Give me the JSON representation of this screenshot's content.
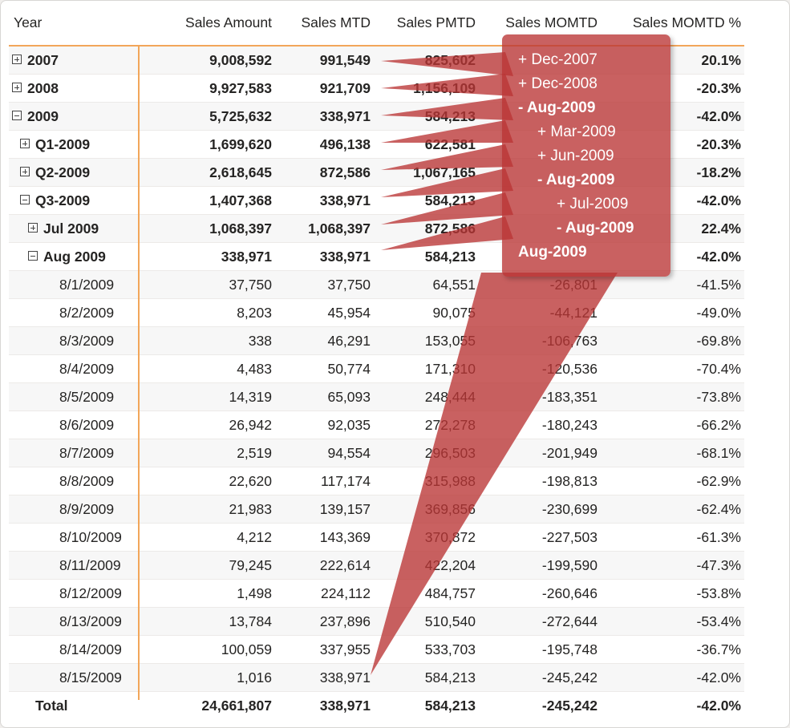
{
  "headers": [
    "Year",
    "Sales Amount",
    "Sales MTD",
    "Sales PMTD",
    "Sales MOMTD",
    "Sales MOMTD %"
  ],
  "rows": [
    {
      "label": "2007",
      "expander": "plus",
      "indent": 0,
      "bold": true,
      "values": [
        "9,008,592",
        "991,549",
        "825,602",
        "",
        "20.1%"
      ]
    },
    {
      "label": "2008",
      "expander": "plus",
      "indent": 0,
      "bold": true,
      "values": [
        "9,927,583",
        "921,709",
        "1,156,109",
        "",
        "-20.3%"
      ]
    },
    {
      "label": "2009",
      "expander": "minus",
      "indent": 0,
      "bold": true,
      "values": [
        "5,725,632",
        "338,971",
        "584,213",
        "",
        "-42.0%"
      ]
    },
    {
      "label": "Q1-2009",
      "expander": "plus",
      "indent": 1,
      "bold": true,
      "values": [
        "1,699,620",
        "496,138",
        "622,581",
        "",
        "-20.3%"
      ]
    },
    {
      "label": "Q2-2009",
      "expander": "plus",
      "indent": 1,
      "bold": true,
      "values": [
        "2,618,645",
        "872,586",
        "1,067,165",
        "",
        "-18.2%"
      ]
    },
    {
      "label": "Q3-2009",
      "expander": "minus",
      "indent": 1,
      "bold": true,
      "values": [
        "1,407,368",
        "338,971",
        "584,213",
        "",
        "-42.0%"
      ]
    },
    {
      "label": "Jul 2009",
      "expander": "plus",
      "indent": 2,
      "bold": true,
      "values": [
        "1,068,397",
        "1,068,397",
        "872,586",
        "",
        "22.4%"
      ]
    },
    {
      "label": "Aug 2009",
      "expander": "minus",
      "indent": 2,
      "bold": true,
      "values": [
        "338,971",
        "338,971",
        "584,213",
        "",
        "-42.0%"
      ]
    },
    {
      "label": "8/1/2009",
      "expander": "",
      "indent": 3,
      "bold": false,
      "values": [
        "37,750",
        "37,750",
        "64,551",
        "-26,801",
        "-41.5%"
      ]
    },
    {
      "label": "8/2/2009",
      "expander": "",
      "indent": 3,
      "bold": false,
      "values": [
        "8,203",
        "45,954",
        "90,075",
        "-44,121",
        "-49.0%"
      ]
    },
    {
      "label": "8/3/2009",
      "expander": "",
      "indent": 3,
      "bold": false,
      "values": [
        "338",
        "46,291",
        "153,055",
        "-106,763",
        "-69.8%"
      ]
    },
    {
      "label": "8/4/2009",
      "expander": "",
      "indent": 3,
      "bold": false,
      "values": [
        "4,483",
        "50,774",
        "171,310",
        "-120,536",
        "-70.4%"
      ]
    },
    {
      "label": "8/5/2009",
      "expander": "",
      "indent": 3,
      "bold": false,
      "values": [
        "14,319",
        "65,093",
        "248,444",
        "-183,351",
        "-73.8%"
      ]
    },
    {
      "label": "8/6/2009",
      "expander": "",
      "indent": 3,
      "bold": false,
      "values": [
        "26,942",
        "92,035",
        "272,278",
        "-180,243",
        "-66.2%"
      ]
    },
    {
      "label": "8/7/2009",
      "expander": "",
      "indent": 3,
      "bold": false,
      "values": [
        "2,519",
        "94,554",
        "296,503",
        "-201,949",
        "-68.1%"
      ]
    },
    {
      "label": "8/8/2009",
      "expander": "",
      "indent": 3,
      "bold": false,
      "values": [
        "22,620",
        "117,174",
        "315,988",
        "-198,813",
        "-62.9%"
      ]
    },
    {
      "label": "8/9/2009",
      "expander": "",
      "indent": 3,
      "bold": false,
      "values": [
        "21,983",
        "139,157",
        "369,856",
        "-230,699",
        "-62.4%"
      ]
    },
    {
      "label": "8/10/2009",
      "expander": "",
      "indent": 3,
      "bold": false,
      "values": [
        "4,212",
        "143,369",
        "370,872",
        "-227,503",
        "-61.3%"
      ]
    },
    {
      "label": "8/11/2009",
      "expander": "",
      "indent": 3,
      "bold": false,
      "values": [
        "79,245",
        "222,614",
        "422,204",
        "-199,590",
        "-47.3%"
      ]
    },
    {
      "label": "8/12/2009",
      "expander": "",
      "indent": 3,
      "bold": false,
      "values": [
        "1,498",
        "224,112",
        "484,757",
        "-260,646",
        "-53.8%"
      ]
    },
    {
      "label": "8/13/2009",
      "expander": "",
      "indent": 3,
      "bold": false,
      "values": [
        "13,784",
        "237,896",
        "510,540",
        "-272,644",
        "-53.4%"
      ]
    },
    {
      "label": "8/14/2009",
      "expander": "",
      "indent": 3,
      "bold": false,
      "values": [
        "100,059",
        "337,955",
        "533,703",
        "-195,748",
        "-36.7%"
      ]
    },
    {
      "label": "8/15/2009",
      "expander": "",
      "indent": 3,
      "bold": false,
      "values": [
        "1,016",
        "338,971",
        "584,213",
        "-245,242",
        "-42.0%"
      ]
    }
  ],
  "total": {
    "label": "Total",
    "values": [
      "24,661,807",
      "338,971",
      "584,213",
      "-245,242",
      "-42.0%"
    ]
  },
  "callout": {
    "items": [
      {
        "text": "+ Dec-2007",
        "bold": false
      },
      {
        "text": "+ Dec-2008",
        "bold": false
      },
      {
        "text": "- Aug-2009",
        "bold": true
      },
      {
        "text": "+ Mar-2009",
        "bold": false
      },
      {
        "text": "+ Jun-2009",
        "bold": false
      },
      {
        "text": "- Aug-2009",
        "bold": true
      },
      {
        "text": "+ Jul-2009",
        "bold": false
      },
      {
        "text": "- Aug-2009",
        "bold": true
      },
      {
        "text": "Aug-2009",
        "bold": true
      }
    ],
    "color": "#ba3434"
  },
  "colors": {
    "accent": "#f2a65a",
    "text": "#252423",
    "alt_row": "#f7f7f7"
  }
}
